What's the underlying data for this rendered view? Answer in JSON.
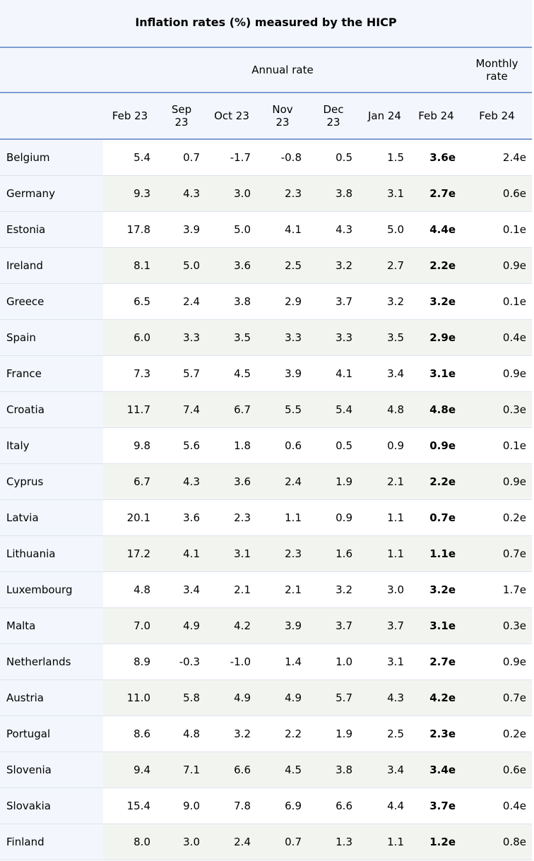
{
  "title": "Inflation rates (%) measured by the HICP",
  "group_headers": {
    "annual": "Annual rate",
    "monthly": "Monthly\nrate"
  },
  "columns": [
    "Feb 23",
    "Sep\n23",
    "Oct 23",
    "Nov\n23",
    "Dec\n23",
    "Jan 24",
    "Feb 24",
    "Feb 24"
  ],
  "rows": [
    {
      "country": "Belgium",
      "values": [
        "5.4",
        "0.7",
        "-1.7",
        "-0.8",
        "0.5",
        "1.5",
        "3.6e",
        "2.4e"
      ]
    },
    {
      "country": "Germany",
      "values": [
        "9.3",
        "4.3",
        "3.0",
        "2.3",
        "3.8",
        "3.1",
        "2.7e",
        "0.6e"
      ]
    },
    {
      "country": "Estonia",
      "values": [
        "17.8",
        "3.9",
        "5.0",
        "4.1",
        "4.3",
        "5.0",
        "4.4e",
        "0.1e"
      ]
    },
    {
      "country": "Ireland",
      "values": [
        "8.1",
        "5.0",
        "3.6",
        "2.5",
        "3.2",
        "2.7",
        "2.2e",
        "0.9e"
      ]
    },
    {
      "country": "Greece",
      "values": [
        "6.5",
        "2.4",
        "3.8",
        "2.9",
        "3.7",
        "3.2",
        "3.2e",
        "0.1e"
      ]
    },
    {
      "country": "Spain",
      "values": [
        "6.0",
        "3.3",
        "3.5",
        "3.3",
        "3.3",
        "3.5",
        "2.9e",
        "0.4e"
      ]
    },
    {
      "country": "France",
      "values": [
        "7.3",
        "5.7",
        "4.5",
        "3.9",
        "4.1",
        "3.4",
        "3.1e",
        "0.9e"
      ]
    },
    {
      "country": "Croatia",
      "values": [
        "11.7",
        "7.4",
        "6.7",
        "5.5",
        "5.4",
        "4.8",
        "4.8e",
        "0.3e"
      ]
    },
    {
      "country": "Italy",
      "values": [
        "9.8",
        "5.6",
        "1.8",
        "0.6",
        "0.5",
        "0.9",
        "0.9e",
        "0.1e"
      ]
    },
    {
      "country": "Cyprus",
      "values": [
        "6.7",
        "4.3",
        "3.6",
        "2.4",
        "1.9",
        "2.1",
        "2.2e",
        "0.9e"
      ]
    },
    {
      "country": "Latvia",
      "values": [
        "20.1",
        "3.6",
        "2.3",
        "1.1",
        "0.9",
        "1.1",
        "0.7e",
        "0.2e"
      ]
    },
    {
      "country": "Lithuania",
      "values": [
        "17.2",
        "4.1",
        "3.1",
        "2.3",
        "1.6",
        "1.1",
        "1.1e",
        "0.7e"
      ]
    },
    {
      "country": "Luxembourg",
      "values": [
        "4.8",
        "3.4",
        "2.1",
        "2.1",
        "3.2",
        "3.0",
        "3.2e",
        "1.7e"
      ]
    },
    {
      "country": "Malta",
      "values": [
        "7.0",
        "4.9",
        "4.2",
        "3.9",
        "3.7",
        "3.7",
        "3.1e",
        "0.3e"
      ]
    },
    {
      "country": "Netherlands",
      "values": [
        "8.9",
        "-0.3",
        "-1.0",
        "1.4",
        "1.0",
        "3.1",
        "2.7e",
        "0.9e"
      ]
    },
    {
      "country": "Austria",
      "values": [
        "11.0",
        "5.8",
        "4.9",
        "4.9",
        "5.7",
        "4.3",
        "4.2e",
        "0.7e"
      ]
    },
    {
      "country": "Portugal",
      "values": [
        "8.6",
        "4.8",
        "3.2",
        "2.2",
        "1.9",
        "2.5",
        "2.3e",
        "0.2e"
      ]
    },
    {
      "country": "Slovenia",
      "values": [
        "9.4",
        "7.1",
        "6.6",
        "4.5",
        "3.8",
        "3.4",
        "3.4e",
        "0.6e"
      ]
    },
    {
      "country": "Slovakia",
      "values": [
        "15.4",
        "9.0",
        "7.8",
        "6.9",
        "6.6",
        "4.4",
        "3.7e",
        "0.4e"
      ]
    },
    {
      "country": "Finland",
      "values": [
        "8.0",
        "3.0",
        "2.4",
        "0.7",
        "1.3",
        "1.1",
        "1.2e",
        "0.8e"
      ]
    }
  ],
  "colors": {
    "header_bg": "#f3f6fc",
    "rule": "#7d9ed4",
    "alt_row_bg": "#f2f4f0"
  }
}
